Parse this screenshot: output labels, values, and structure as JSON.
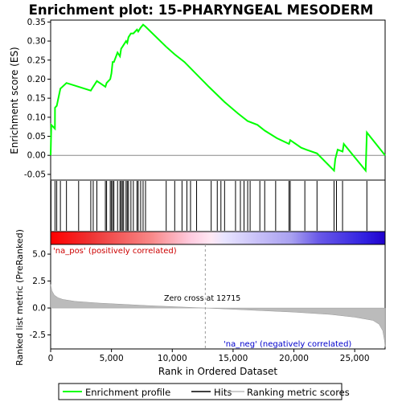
{
  "chart_data": {
    "type": "line",
    "title": "Enrichment plot: 15-PHARYNGEAL MESODERM",
    "top_panel": {
      "ylabel": "Enrichment score (ES)",
      "xlim": [
        0,
        27500
      ],
      "ylim": [
        -0.065,
        0.355
      ],
      "yticks": [
        -0.05,
        0.0,
        0.05,
        0.1,
        0.15,
        0.2,
        0.25,
        0.3,
        0.35
      ],
      "ytick_labels": [
        "-0.05",
        "0.00",
        "0.05",
        "0.10",
        "0.15",
        "0.20",
        "0.25",
        "0.30",
        "0.35"
      ],
      "series_name": "Enrichment profile",
      "line_color": "#00ff00",
      "es_x": [
        0,
        50,
        350,
        360,
        500,
        800,
        1300,
        2300,
        3300,
        3500,
        3800,
        4500,
        4600,
        4900,
        5000,
        5100,
        5200,
        5500,
        5700,
        5800,
        5900,
        6000,
        6200,
        6300,
        6400,
        6600,
        6800,
        7100,
        7200,
        7400,
        7600,
        7800,
        9500,
        10200,
        11000,
        13000,
        14300,
        15400,
        16200,
        17000,
        17600,
        18600,
        19600,
        19700,
        20600,
        21000,
        21900,
        23300,
        23400,
        23600,
        24000,
        24100,
        25900,
        26000,
        27500
      ],
      "es_y": [
        0.0,
        0.08,
        0.07,
        0.125,
        0.13,
        0.175,
        0.19,
        0.18,
        0.17,
        0.18,
        0.195,
        0.18,
        0.19,
        0.2,
        0.215,
        0.245,
        0.245,
        0.27,
        0.26,
        0.28,
        0.285,
        0.29,
        0.3,
        0.295,
        0.31,
        0.32,
        0.32,
        0.33,
        0.325,
        0.335,
        0.343,
        0.338,
        0.285,
        0.265,
        0.245,
        0.18,
        0.14,
        0.11,
        0.09,
        0.08,
        0.065,
        0.045,
        0.03,
        0.04,
        0.02,
        0.015,
        0.005,
        -0.04,
        -0.01,
        0.015,
        0.01,
        0.03,
        -0.04,
        0.06,
        0.0
      ]
    },
    "hits": [
      30,
      360,
      500,
      800,
      1300,
      2300,
      3300,
      3500,
      3800,
      4500,
      4600,
      4900,
      5000,
      5100,
      5200,
      5500,
      5700,
      5800,
      5900,
      6000,
      6200,
      6300,
      6400,
      6600,
      6800,
      7100,
      7200,
      7400,
      7600,
      7800,
      9500,
      10200,
      10800,
      11200,
      11500,
      12000,
      13200,
      13700,
      14000,
      14300,
      15200,
      15600,
      15900,
      16200,
      16400,
      17200,
      17600,
      18500,
      19600,
      19700,
      20900,
      21900,
      23300,
      23500,
      24000,
      26000
    ],
    "metric_panel": {
      "ylabel": "Ranked list metric (PreRanked)",
      "xlabel": "Rank in Ordered Dataset",
      "xlim": [
        0,
        27500
      ],
      "ylim": [
        -3.8,
        5.9
      ],
      "xticks": [
        0,
        5000,
        10000,
        15000,
        20000,
        25000
      ],
      "xtick_labels": [
        "0",
        "5,000",
        "10,000",
        "15,000",
        "20,000",
        "25,000"
      ],
      "yticks": [
        -2.5,
        0.0,
        2.5,
        5.0
      ],
      "ytick_labels": [
        "-2.5",
        "0.0",
        "2.5",
        "5.0"
      ],
      "curve_x": [
        0,
        100,
        300,
        600,
        1000,
        2000,
        4000,
        8000,
        12715,
        16000,
        20000,
        23000,
        25000,
        26500,
        27000,
        27300,
        27450,
        27500
      ],
      "curve_y": [
        2.2,
        1.6,
        1.2,
        0.95,
        0.8,
        0.62,
        0.45,
        0.22,
        0.0,
        -0.17,
        -0.38,
        -0.6,
        -0.85,
        -1.15,
        -1.5,
        -2.1,
        -3.0,
        -3.6
      ],
      "pos_label": "'na_pos' (positively correlated)",
      "neg_label": "'na_neg' (negatively correlated)",
      "zero_cross_label": "Zero cross at 12715",
      "zero_cross": 12715
    },
    "legend": {
      "placement": "bottom",
      "entries": [
        {
          "label": "Enrichment profile",
          "color": "#00ff00"
        },
        {
          "label": "Hits",
          "color": "#000000"
        },
        {
          "label": "Ranking metric scores",
          "color": "#bbbbbb"
        }
      ]
    }
  }
}
